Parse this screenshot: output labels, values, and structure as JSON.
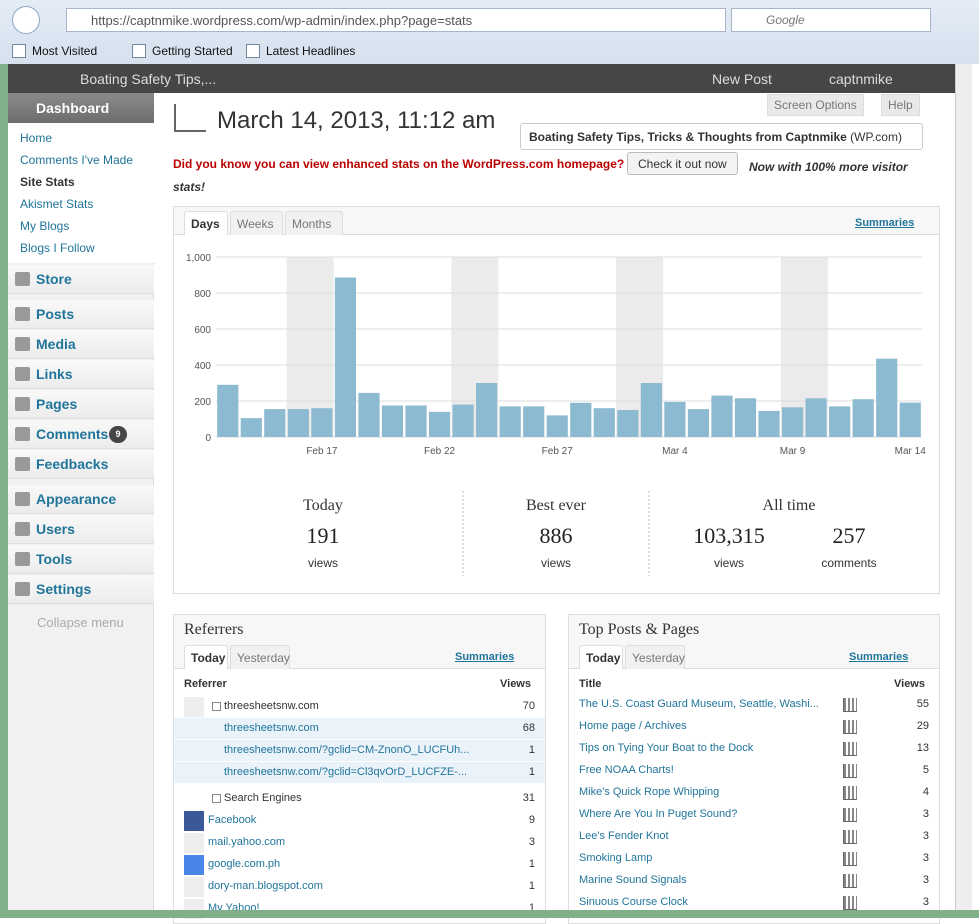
{
  "browser": {
    "url": "https://captnmike.wordpress.com/wp-admin/index.php?page=stats",
    "search": "Google",
    "bookmarks": [
      "Most Visited",
      "Getting Started",
      "Latest Headlines"
    ]
  },
  "admin_bar": {
    "site": "Boating Safety Tips,...",
    "new_post": "New Post",
    "user": "captnmike"
  },
  "menu": {
    "dashboard": "Dashboard",
    "submenu": [
      "Home",
      "Comments I've Made",
      "Site Stats",
      "Akismet Stats",
      "My Blogs",
      "Blogs I Follow"
    ],
    "groups": [
      [
        {
          "label": "Store"
        }
      ],
      [
        {
          "label": "Posts"
        },
        {
          "label": "Media"
        },
        {
          "label": "Links"
        },
        {
          "label": "Pages"
        },
        {
          "label": "Comments",
          "badge": 9
        },
        {
          "label": "Feedbacks"
        }
      ],
      [
        {
          "label": "Appearance"
        },
        {
          "label": "Users"
        },
        {
          "label": "Tools"
        },
        {
          "label": "Settings"
        }
      ]
    ],
    "collapse": "Collapse menu"
  },
  "screen_options": "Screen Options",
  "help": "Help",
  "header": {
    "date": "March 14, 2013, 11:12 am",
    "blog": "Boating Safety Tips, Tricks & Thoughts from Captnmike",
    "blog_suffix": "(WP.com)"
  },
  "notice": {
    "text": "Did you know you can view enhanced stats on the WordPress.com homepage?",
    "button": "Check it out now",
    "tagline": "Now with 100% more visitor stats!"
  },
  "chart_tabs": [
    "Days",
    "Weeks",
    "Months"
  ],
  "summaries": "Summaries",
  "chart_data": {
    "type": "bar",
    "categories": [
      null,
      null,
      null,
      null,
      "Feb 17",
      null,
      null,
      null,
      null,
      "Feb 22",
      null,
      null,
      null,
      null,
      "Feb 27",
      null,
      null,
      null,
      null,
      "Mar 4",
      null,
      null,
      null,
      null,
      "Mar 9",
      null,
      null,
      null,
      null,
      "Mar 14"
    ],
    "values": [
      290,
      105,
      155,
      155,
      160,
      886,
      245,
      175,
      175,
      140,
      180,
      300,
      170,
      170,
      120,
      190,
      160,
      150,
      300,
      195,
      155,
      230,
      215,
      145,
      165,
      215,
      170,
      210,
      435,
      191
    ],
    "color": "#8cbad0",
    "ylim": [
      0,
      1000
    ],
    "yticks": [
      0,
      200,
      400,
      600,
      800,
      {
        "value": 1000,
        "label": "1,000"
      }
    ],
    "grid": true
  },
  "summary": [
    {
      "label": "Today",
      "items": [
        {
          "number": "191",
          "unit": "views"
        }
      ]
    },
    {
      "label": "Best ever",
      "items": [
        {
          "number": "886",
          "unit": "views"
        }
      ]
    },
    {
      "label": "All time",
      "items": [
        {
          "number": "103,315",
          "unit": "views"
        },
        {
          "number": "257",
          "unit": "comments"
        }
      ]
    }
  ],
  "referrers": {
    "title": "Referrers",
    "tabs": [
      "Today",
      "Yesterday"
    ],
    "summaries": "Summaries",
    "columns": [
      "Referrer",
      "Views"
    ],
    "rows": [
      {
        "label": "threesheetsnw.com",
        "views": 70,
        "expanded": true,
        "children": [
          {
            "label": "threesheetsnw.com",
            "views": 68
          },
          {
            "label": "threesheetsnw.com/?gclid=CM-ZnonO_LUCFUh...",
            "views": 1
          },
          {
            "label": "threesheetsnw.com/?gclid=Cl3qvOrD_LUCFZE-...",
            "views": 1
          }
        ]
      },
      {
        "label": "Search Engines",
        "views": 31,
        "expanded": false
      },
      {
        "label": "Facebook",
        "views": 9
      },
      {
        "label": "mail.yahoo.com",
        "views": 3
      },
      {
        "label": "google.com.ph",
        "views": 1
      },
      {
        "label": "dory-man.blogspot.com",
        "views": 1
      },
      {
        "label": "My Yahoo!",
        "views": 1
      }
    ]
  },
  "top_posts": {
    "title": "Top Posts & Pages",
    "tabs": [
      "Today",
      "Yesterday"
    ],
    "summaries": "Summaries",
    "columns": [
      "Title",
      "Views"
    ],
    "rows": [
      {
        "label": "The U.S. Coast Guard Museum, Seattle, Washi...",
        "views": 55
      },
      {
        "label": "Home page / Archives",
        "views": 29
      },
      {
        "label": "Tips on Tying Your Boat to the Dock",
        "views": 13
      },
      {
        "label": "Free NOAA Charts!",
        "views": 5
      },
      {
        "label": "Mike's Quick Rope Whipping",
        "views": 4
      },
      {
        "label": "Where Are You In Puget Sound?",
        "views": 3
      },
      {
        "label": "Lee's Fender Knot",
        "views": 3
      },
      {
        "label": "Smoking Lamp",
        "views": 3
      },
      {
        "label": "Marine Sound Signals",
        "views": 3
      },
      {
        "label": "Sinuous Course Clock",
        "views": 3
      }
    ]
  }
}
